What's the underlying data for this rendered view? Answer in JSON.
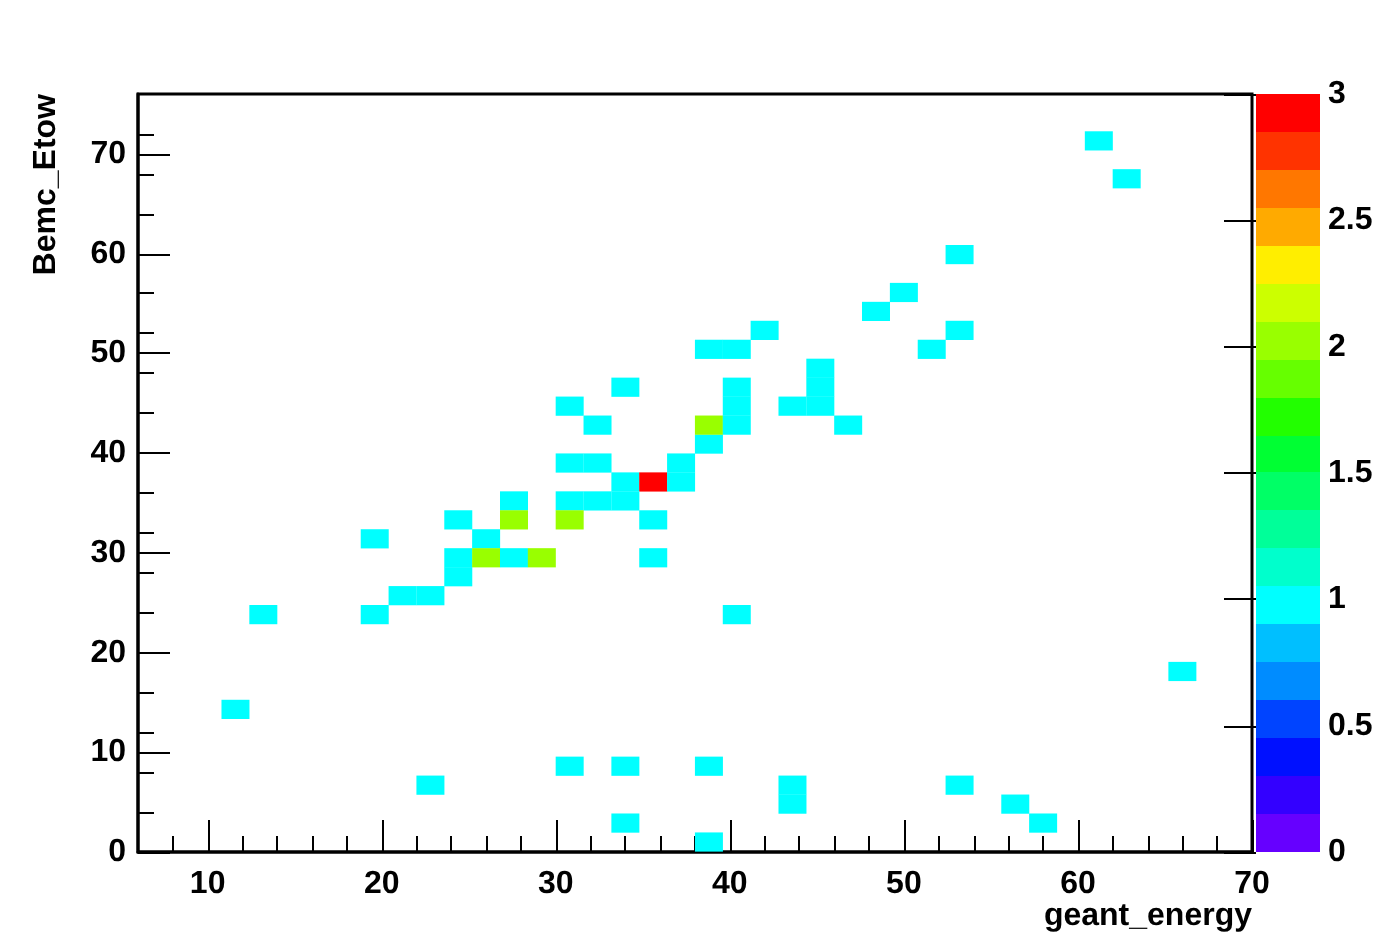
{
  "chart_data": {
    "type": "scatter",
    "xlabel": "geant_energy",
    "ylabel": "Bemc_Etow",
    "marker": "square",
    "x": [
      30.8,
      32.4,
      37.2,
      34,
      35.6,
      37.2,
      27.6,
      30.8,
      32.4,
      34,
      24.4,
      27.6,
      30.8,
      35.6,
      19.6,
      26,
      24.4,
      26,
      27.6,
      29.2,
      35.6,
      24.4,
      21.2,
      22.8,
      13.2,
      19.6,
      40.4,
      66,
      11.6,
      30.8,
      34,
      38.8,
      22.8,
      43.6,
      53.2,
      43.6,
      56.4,
      34,
      58,
      38.8,
      38.8,
      38.8,
      61.2,
      62.8,
      53.2,
      50,
      48.4,
      42,
      53.2,
      38.8,
      40.4,
      51.6,
      45.2,
      45.2,
      45.2,
      34,
      40.4,
      40.4,
      40.4,
      43.6,
      46.8,
      30.8,
      32.4
    ],
    "values": [
      39,
      39,
      39,
      37.1,
      37.1,
      37.1,
      35.2,
      35.2,
      35.2,
      35.2,
      33.3,
      33.3,
      33.3,
      33.3,
      31.4,
      31.4,
      29.5,
      29.5,
      29.5,
      29.5,
      29.5,
      27.6,
      25.7,
      25.7,
      23.8,
      23.8,
      23.8,
      18.1,
      14.3,
      8.6,
      8.6,
      8.6,
      6.7,
      6.7,
      6.7,
      4.8,
      4.8,
      2.9,
      2.9,
      1,
      40.9,
      42.8,
      71.3,
      67.5,
      59.9,
      56.1,
      54.2,
      52.3,
      52.3,
      50.4,
      50.4,
      50.4,
      48.5,
      46.6,
      44.7,
      46.6,
      42.8,
      44.7,
      46.6,
      44.7,
      42.8,
      44.7,
      42.8
    ],
    "cvalues": [
      1,
      1,
      1,
      1,
      3,
      1,
      1,
      1,
      1,
      1,
      1,
      2,
      2,
      1,
      1,
      1,
      1,
      2,
      1,
      2,
      1,
      1,
      1,
      1,
      1,
      1,
      1,
      1,
      1,
      1,
      1,
      1,
      1,
      1,
      1,
      1,
      1,
      1,
      1,
      1,
      1,
      2,
      1,
      1,
      1,
      1,
      1,
      1,
      1,
      1,
      1,
      1,
      1,
      1,
      1,
      1,
      1,
      1,
      1,
      1,
      1,
      1,
      1
    ],
    "xlim": [
      6,
      70
    ],
    "ylim": [
      0,
      76
    ],
    "xticks": [
      10,
      20,
      30,
      40,
      50,
      60,
      70
    ],
    "yticks": [
      0,
      10,
      20,
      30,
      40,
      50,
      60,
      70
    ],
    "clim": [
      0,
      3
    ],
    "cticks": [
      0,
      0.5,
      1,
      1.5,
      2,
      2.5,
      3
    ]
  }
}
